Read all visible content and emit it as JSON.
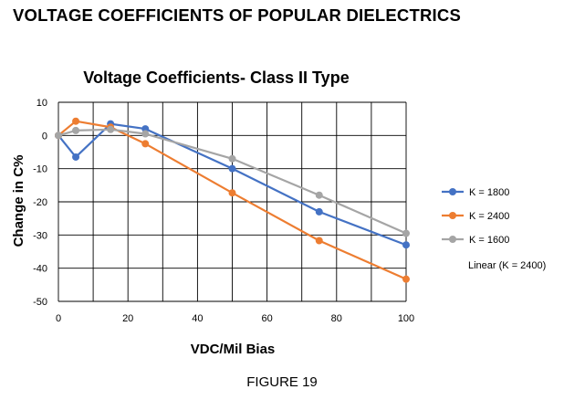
{
  "heading": "VOLTAGE COEFFICIENTS OF POPULAR DIELECTRICS",
  "caption": "FIGURE 19",
  "chart_data": {
    "type": "line",
    "title": "Voltage Coefficients- Class II Type",
    "xlabel": "VDC/Mil Bias",
    "ylabel": "Change in C%",
    "xlim": [
      0,
      100
    ],
    "ylim": [
      -50,
      10
    ],
    "xticks": [
      0,
      20,
      40,
      60,
      80,
      100
    ],
    "yticks": [
      10,
      0,
      -10,
      -20,
      -30,
      -40,
      -50
    ],
    "grid": true,
    "legend_position": "right",
    "series": [
      {
        "name": "K = 1800",
        "color": "#4472c4",
        "points": [
          [
            0,
            0
          ],
          [
            5,
            -6.5
          ],
          [
            15,
            3.5
          ],
          [
            25,
            2
          ],
          [
            50,
            -10
          ],
          [
            75,
            -23
          ],
          [
            100,
            -33
          ]
        ]
      },
      {
        "name": "K = 2400",
        "color": "#ed7d31",
        "points": [
          [
            0,
            0
          ],
          [
            5,
            4.3
          ],
          [
            15,
            2.5
          ],
          [
            25,
            -2.5
          ],
          [
            50,
            -17.3
          ],
          [
            75,
            -31.7
          ],
          [
            100,
            -43.3
          ]
        ]
      },
      {
        "name": "K = 1600",
        "color": "#a5a5a5",
        "points": [
          [
            0,
            0
          ],
          [
            5,
            1.5
          ],
          [
            15,
            1.8
          ],
          [
            25,
            0.5
          ],
          [
            50,
            -7
          ],
          [
            75,
            -18
          ],
          [
            100,
            -29.5
          ]
        ]
      }
    ],
    "annotation": "Linear (K = 2400)"
  }
}
